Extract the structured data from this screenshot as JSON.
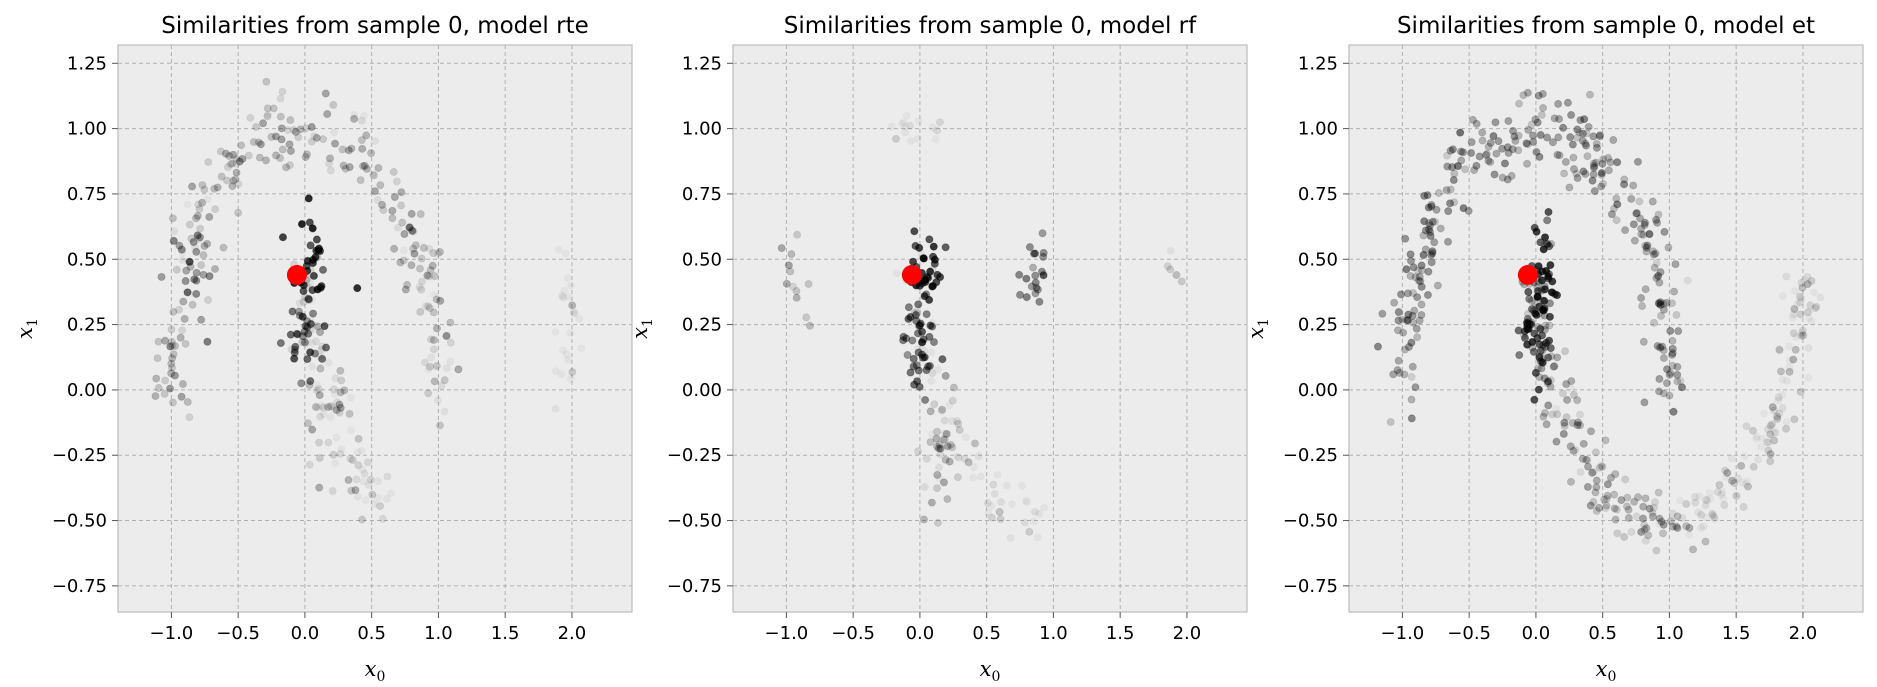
{
  "chart_data": [
    {
      "type": "scatter",
      "title": "Similarities from sample 0, model rte",
      "xlabel": "x",
      "xlabel_sub": "0",
      "ylabel": "x",
      "ylabel_sub": "1",
      "xlim": [
        -1.4,
        2.45
      ],
      "ylim": [
        -0.85,
        1.32
      ],
      "xticks": [
        -1.0,
        -0.5,
        0.0,
        0.5,
        1.0,
        1.5,
        2.0
      ],
      "xtick_labels": [
        "−1.0",
        "−0.5",
        "0.0",
        "0.5",
        "1.0",
        "1.5",
        "2.0"
      ],
      "yticks": [
        -0.75,
        -0.5,
        -0.25,
        0.0,
        0.25,
        0.5,
        0.75,
        1.0,
        1.25
      ],
      "ytick_labels": [
        "−0.75",
        "−0.50",
        "−0.25",
        "0.00",
        "0.25",
        "0.50",
        "0.75",
        "1.00",
        "1.25"
      ],
      "grid": true,
      "highlight": {
        "x": -0.06,
        "y": 0.44,
        "color": "#ff0000"
      },
      "clusters": [
        {
          "cx": 0.05,
          "cy": 0.5,
          "r": 0.12,
          "n": 30,
          "sim": 0.75
        },
        {
          "cx": 0.0,
          "cy": 0.2,
          "r": 0.12,
          "n": 30,
          "sim": 0.5
        },
        {
          "cx": -0.85,
          "cy": 0.5,
          "r": 0.12,
          "n": 20,
          "sim": 0.4
        },
        {
          "cx": 0.2,
          "cy": -0.15,
          "r": 0.15,
          "n": 25,
          "sim": 0.2
        }
      ],
      "arcs": [
        {
          "cx": 0.0,
          "cy": 0.0,
          "r": 1.0,
          "from": 0,
          "to": 180,
          "n": 240,
          "sim": 0.18,
          "jitter": 0.12
        },
        {
          "cx": 1.0,
          "cy": 0.5,
          "r": 1.0,
          "from": 180,
          "to": 250,
          "n": 80,
          "sim": 0.07,
          "jitter": 0.1
        },
        {
          "cx": 1.0,
          "cy": 0.5,
          "r": 1.0,
          "from": 330,
          "to": 360,
          "n": 25,
          "sim": 0.03,
          "jitter": 0.08
        }
      ]
    },
    {
      "type": "scatter",
      "title": "Similarities from sample 0, model rf",
      "xlabel": "x",
      "xlabel_sub": "0",
      "ylabel": "x",
      "ylabel_sub": "1",
      "xlim": [
        -1.4,
        2.45
      ],
      "ylim": [
        -0.85,
        1.32
      ],
      "xticks": [
        -1.0,
        -0.5,
        0.0,
        0.5,
        1.0,
        1.5,
        2.0
      ],
      "xtick_labels": [
        "−1.0",
        "−0.5",
        "0.0",
        "0.5",
        "1.0",
        "1.5",
        "2.0"
      ],
      "yticks": [
        -0.75,
        -0.5,
        -0.25,
        0.0,
        0.25,
        0.5,
        0.75,
        1.0,
        1.25
      ],
      "ytick_labels": [
        "−0.75",
        "−0.50",
        "−0.25",
        "0.00",
        "0.25",
        "0.50",
        "0.75",
        "1.00",
        "1.25"
      ],
      "grid": true,
      "highlight": {
        "x": -0.06,
        "y": 0.44,
        "color": "#ff0000"
      },
      "clusters": [
        {
          "cx": 0.05,
          "cy": 0.45,
          "r": 0.1,
          "n": 35,
          "sim": 0.7
        },
        {
          "cx": 0.0,
          "cy": 0.15,
          "r": 0.12,
          "n": 40,
          "sim": 0.5
        },
        {
          "cx": 0.85,
          "cy": 0.44,
          "r": 0.08,
          "n": 20,
          "sim": 0.45
        },
        {
          "cx": -0.95,
          "cy": 0.43,
          "r": 0.1,
          "n": 12,
          "sim": 0.25
        },
        {
          "cx": 1.9,
          "cy": 0.43,
          "r": 0.06,
          "n": 5,
          "sim": 0.15
        },
        {
          "cx": 0.2,
          "cy": -0.2,
          "r": 0.15,
          "n": 40,
          "sim": 0.18
        }
      ],
      "arcs": [
        {
          "cx": 1.0,
          "cy": 0.5,
          "r": 1.0,
          "from": 180,
          "to": 260,
          "n": 60,
          "sim": 0.06,
          "jitter": 0.1
        },
        {
          "cx": 0.0,
          "cy": 0.0,
          "r": 1.0,
          "from": 80,
          "to": 100,
          "n": 15,
          "sim": 0.04,
          "jitter": 0.08
        }
      ]
    },
    {
      "type": "scatter",
      "title": "Similarities from sample 0, model et",
      "xlabel": "x",
      "xlabel_sub": "0",
      "ylabel": "x",
      "ylabel_sub": "1",
      "xlim": [
        -1.4,
        2.45
      ],
      "ylim": [
        -0.85,
        1.32
      ],
      "xticks": [
        -1.0,
        -0.5,
        0.0,
        0.5,
        1.0,
        1.5,
        2.0
      ],
      "xtick_labels": [
        "−1.0",
        "−0.5",
        "0.0",
        "0.5",
        "1.0",
        "1.5",
        "2.0"
      ],
      "yticks": [
        -0.75,
        -0.5,
        -0.25,
        0.0,
        0.25,
        0.5,
        0.75,
        1.0,
        1.25
      ],
      "ytick_labels": [
        "−0.75",
        "−0.50",
        "−0.25",
        "0.00",
        "0.25",
        "0.50",
        "0.75",
        "1.00",
        "1.25"
      ],
      "grid": true,
      "highlight": {
        "x": -0.06,
        "y": 0.44,
        "color": "#ff0000"
      },
      "clusters": [
        {
          "cx": 0.05,
          "cy": 0.45,
          "r": 0.1,
          "n": 30,
          "sim": 0.7
        },
        {
          "cx": 0.0,
          "cy": 0.2,
          "r": 0.12,
          "n": 40,
          "sim": 0.6
        }
      ],
      "arcs": [
        {
          "cx": 0.0,
          "cy": 0.0,
          "r": 1.0,
          "from": 0,
          "to": 180,
          "n": 300,
          "sim": 0.3,
          "jitter": 0.12
        },
        {
          "cx": 1.0,
          "cy": 0.5,
          "r": 1.0,
          "from": 180,
          "to": 270,
          "n": 150,
          "sim": 0.22,
          "jitter": 0.1
        },
        {
          "cx": 1.0,
          "cy": 0.5,
          "r": 1.0,
          "from": 270,
          "to": 360,
          "n": 130,
          "sim": 0.1,
          "jitter": 0.1
        }
      ]
    }
  ]
}
